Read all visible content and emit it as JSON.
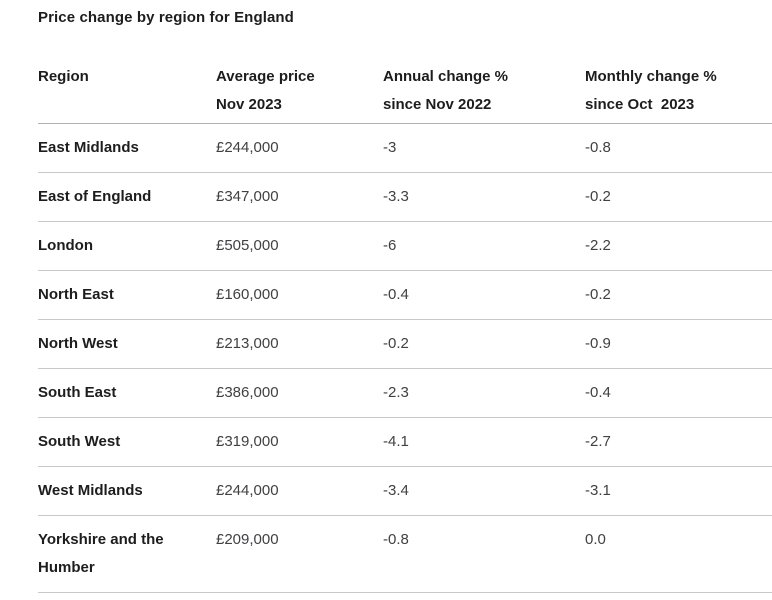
{
  "page": {
    "title": "Price change by region for England"
  },
  "table": {
    "columns": [
      {
        "line1": "Region",
        "line2": ""
      },
      {
        "line1": "Average price",
        "line2": "Nov 2023"
      },
      {
        "line1": "Annual change %",
        "line2": "since Nov 2022"
      },
      {
        "line1": "Monthly change %",
        "line2": "since Oct  2023"
      }
    ],
    "rows": [
      {
        "region": "East Midlands",
        "avg_price": "£244,000",
        "annual_change": "-3",
        "monthly_change": "-0.8"
      },
      {
        "region": "East of England",
        "avg_price": "£347,000",
        "annual_change": "-3.3",
        "monthly_change": "-0.2"
      },
      {
        "region": "London",
        "avg_price": "£505,000",
        "annual_change": "-6",
        "monthly_change": "-2.2"
      },
      {
        "region": "North East",
        "avg_price": "£160,000",
        "annual_change": "-0.4",
        "monthly_change": "-0.2"
      },
      {
        "region": "North West",
        "avg_price": "£213,000",
        "annual_change": "-0.2",
        "monthly_change": "-0.9"
      },
      {
        "region": "South East",
        "avg_price": "£386,000",
        "annual_change": "-2.3",
        "monthly_change": "-0.4"
      },
      {
        "region": "South West",
        "avg_price": "£319,000",
        "annual_change": "-4.1",
        "monthly_change": "-2.7"
      },
      {
        "region": "West Midlands",
        "avg_price": "£244,000",
        "annual_change": "-3.4",
        "monthly_change": "-3.1"
      },
      {
        "region": "Yorkshire and the Humber",
        "avg_price": "£209,000",
        "annual_change": "-0.8",
        "monthly_change": "0.0"
      }
    ]
  },
  "colors": {
    "text_strong": "#1d1d1d",
    "text_value": "#414042",
    "divider_header": "#b1b1b1",
    "divider_row": "#c9c9c9",
    "background": "#ffffff"
  },
  "chart_data": {
    "type": "table",
    "title": "Price change by region for England",
    "columns": [
      "Region",
      "Average price Nov 2023",
      "Annual change % since Nov 2022",
      "Monthly change % since Oct 2023"
    ],
    "rows": [
      [
        "East Midlands",
        "£244,000",
        -3,
        -0.8
      ],
      [
        "East of England",
        "£347,000",
        -3.3,
        -0.2
      ],
      [
        "London",
        "£505,000",
        -6,
        -2.2
      ],
      [
        "North East",
        "£160,000",
        -0.4,
        -0.2
      ],
      [
        "North West",
        "£213,000",
        -0.2,
        -0.9
      ],
      [
        "South East",
        "£386,000",
        -2.3,
        -0.4
      ],
      [
        "South West",
        "£319,000",
        -4.1,
        -2.7
      ],
      [
        "West Midlands",
        "£244,000",
        -3.4,
        -3.1
      ],
      [
        "Yorkshire and the Humber",
        "£209,000",
        -0.8,
        0.0
      ]
    ]
  }
}
